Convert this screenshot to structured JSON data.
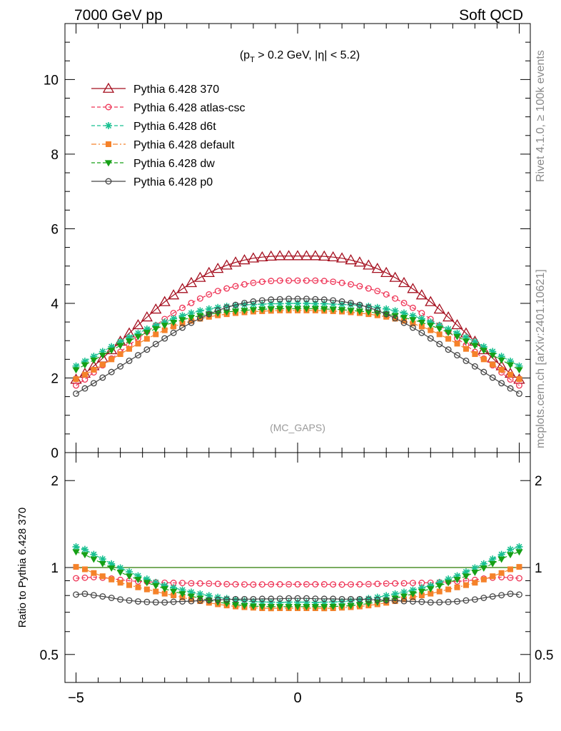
{
  "header": {
    "left_title": "7000 GeV pp",
    "right_title": "Soft QCD"
  },
  "side_text": {
    "rivet": "Rivet 4.1.0, ≥ 100k events",
    "mcplots": "mcplots.cern.ch [arXiv:2401.10621]"
  },
  "colors": {
    "p370": "#a50f1f",
    "atlas": "#ee3355",
    "d6t": "#18c090",
    "default": "#f5822a",
    "dw": "#16a016",
    "p0": "#444444",
    "ref_line": "#2a7a00"
  },
  "chart_data": [
    {
      "type": "line",
      "panel": "main",
      "title": "(p_T > 0.2 GeV, |η| < 5.2)",
      "title_parts": {
        "a": "(p",
        "sub": "T",
        "b": " > 0.2 GeV, |η| < 5.2)"
      },
      "annotation": "(MC_GAPS)",
      "xlim": [
        -5.25,
        5.25
      ],
      "ylim": [
        0,
        11.5
      ],
      "xlabel": "",
      "ylabel": "",
      "ytick_labels": [
        "0",
        "2",
        "4",
        "6",
        "8",
        "10"
      ],
      "legend_position": "top-left",
      "x": [
        -5.0,
        -4.8,
        -4.6,
        -4.4,
        -4.2,
        -4.0,
        -3.8,
        -3.6,
        -3.4,
        -3.2,
        -3.0,
        -2.8,
        -2.6,
        -2.4,
        -2.2,
        -2.0,
        -1.8,
        -1.6,
        -1.4,
        -1.2,
        -1.0,
        -0.8,
        -0.6,
        -0.4,
        -0.2,
        0.0,
        0.2,
        0.4,
        0.6,
        0.8,
        1.0,
        1.2,
        1.4,
        1.6,
        1.8,
        2.0,
        2.2,
        2.4,
        2.6,
        2.8,
        3.0,
        3.2,
        3.4,
        3.6,
        3.8,
        4.0,
        4.2,
        4.4,
        4.6,
        4.8,
        5.0
      ],
      "series": [
        {
          "key": "p370",
          "name": "Pythia 6.428 370",
          "marker": "triangle-open",
          "line": "solid",
          "values": [
            1.96,
            2.12,
            2.32,
            2.53,
            2.75,
            2.98,
            3.2,
            3.42,
            3.63,
            3.84,
            4.04,
            4.22,
            4.39,
            4.55,
            4.69,
            4.82,
            4.93,
            5.02,
            5.1,
            5.16,
            5.21,
            5.24,
            5.26,
            5.27,
            5.27,
            5.27,
            5.27,
            5.27,
            5.26,
            5.24,
            5.21,
            5.16,
            5.1,
            5.02,
            4.93,
            4.82,
            4.69,
            4.55,
            4.39,
            4.22,
            4.04,
            3.84,
            3.63,
            3.42,
            3.2,
            2.98,
            2.75,
            2.53,
            2.32,
            2.12,
            1.96
          ]
        },
        {
          "key": "atlas",
          "name": "Pythia 6.428 atlas-csc",
          "marker": "circle-open",
          "line": "dashed",
          "values": [
            1.8,
            1.96,
            2.15,
            2.34,
            2.52,
            2.7,
            2.88,
            3.06,
            3.24,
            3.41,
            3.58,
            3.74,
            3.88,
            4.01,
            4.13,
            4.24,
            4.33,
            4.4,
            4.46,
            4.51,
            4.55,
            4.58,
            4.6,
            4.61,
            4.61,
            4.61,
            4.61,
            4.61,
            4.6,
            4.58,
            4.55,
            4.51,
            4.46,
            4.4,
            4.33,
            4.24,
            4.13,
            4.01,
            3.88,
            3.74,
            3.58,
            3.41,
            3.24,
            3.06,
            2.88,
            2.7,
            2.52,
            2.34,
            2.15,
            1.96,
            1.8
          ]
        },
        {
          "key": "d6t",
          "name": "Pythia 6.428 d6t",
          "marker": "star",
          "line": "dashed",
          "values": [
            2.32,
            2.45,
            2.58,
            2.71,
            2.84,
            2.97,
            3.09,
            3.2,
            3.31,
            3.41,
            3.5,
            3.59,
            3.67,
            3.74,
            3.8,
            3.85,
            3.89,
            3.92,
            3.94,
            3.96,
            3.97,
            3.98,
            3.99,
            3.99,
            4.0,
            4.0,
            4.0,
            3.99,
            3.99,
            3.98,
            3.97,
            3.96,
            3.94,
            3.92,
            3.89,
            3.85,
            3.8,
            3.74,
            3.67,
            3.59,
            3.5,
            3.41,
            3.31,
            3.2,
            3.09,
            2.97,
            2.84,
            2.71,
            2.58,
            2.45,
            2.32
          ]
        },
        {
          "key": "default",
          "name": "Pythia 6.428 default",
          "marker": "square",
          "line": "dashdot",
          "values": [
            1.97,
            2.09,
            2.22,
            2.36,
            2.5,
            2.64,
            2.78,
            2.92,
            3.05,
            3.17,
            3.28,
            3.38,
            3.46,
            3.53,
            3.59,
            3.64,
            3.68,
            3.71,
            3.74,
            3.76,
            3.78,
            3.79,
            3.8,
            3.81,
            3.81,
            3.81,
            3.81,
            3.81,
            3.8,
            3.79,
            3.78,
            3.76,
            3.74,
            3.71,
            3.68,
            3.64,
            3.59,
            3.53,
            3.46,
            3.38,
            3.28,
            3.17,
            3.05,
            2.92,
            2.78,
            2.64,
            2.5,
            2.36,
            2.22,
            2.09,
            1.97
          ]
        },
        {
          "key": "dw",
          "name": "Pythia 6.428 dw",
          "marker": "triangle-down",
          "line": "dashed",
          "values": [
            2.22,
            2.35,
            2.48,
            2.61,
            2.74,
            2.87,
            2.99,
            3.11,
            3.22,
            3.32,
            3.41,
            3.49,
            3.56,
            3.62,
            3.67,
            3.71,
            3.74,
            3.77,
            3.79,
            3.81,
            3.83,
            3.84,
            3.85,
            3.86,
            3.86,
            3.86,
            3.86,
            3.86,
            3.85,
            3.84,
            3.83,
            3.81,
            3.79,
            3.77,
            3.74,
            3.71,
            3.67,
            3.62,
            3.56,
            3.49,
            3.41,
            3.32,
            3.22,
            3.11,
            2.99,
            2.87,
            2.74,
            2.61,
            2.48,
            2.35,
            2.22
          ]
        },
        {
          "key": "p0",
          "name": "Pythia 6.428 p0",
          "marker": "circle-open",
          "line": "solid",
          "values": [
            1.58,
            1.72,
            1.86,
            2.01,
            2.16,
            2.31,
            2.46,
            2.61,
            2.76,
            2.91,
            3.06,
            3.21,
            3.35,
            3.48,
            3.6,
            3.71,
            3.81,
            3.89,
            3.96,
            4.01,
            4.05,
            4.08,
            4.1,
            4.11,
            4.12,
            4.12,
            4.12,
            4.11,
            4.1,
            4.08,
            4.05,
            4.01,
            3.96,
            3.89,
            3.81,
            3.71,
            3.6,
            3.48,
            3.35,
            3.21,
            3.06,
            2.91,
            2.76,
            2.61,
            2.46,
            2.31,
            2.16,
            2.01,
            1.86,
            1.72,
            1.58
          ]
        }
      ]
    },
    {
      "type": "line",
      "panel": "ratio",
      "ylabel": "Ratio to Pythia 6.428 370",
      "xlim": [
        -5.25,
        5.25
      ],
      "ylim": [
        0.4,
        2.5
      ],
      "yscale": "log",
      "ytick_labels": [
        "0.5",
        "1",
        "2"
      ],
      "xtick_labels": [
        "−5",
        "0",
        "5"
      ],
      "reference_value": 1.0,
      "series": [
        {
          "key": "atlas",
          "values": [
            0.918,
            0.922,
            0.926,
            0.922,
            0.916,
            0.906,
            0.9,
            0.895,
            0.893,
            0.888,
            0.886,
            0.885,
            0.884,
            0.882,
            0.881,
            0.88,
            0.878,
            0.876,
            0.875,
            0.874,
            0.873,
            0.874,
            0.875,
            0.875,
            0.875,
            0.875,
            0.875,
            0.875,
            0.875,
            0.874,
            0.873,
            0.874,
            0.875,
            0.876,
            0.878,
            0.88,
            0.881,
            0.882,
            0.884,
            0.885,
            0.886,
            0.888,
            0.893,
            0.895,
            0.9,
            0.906,
            0.916,
            0.922,
            0.926,
            0.922,
            0.918
          ]
        },
        {
          "key": "d6t",
          "values": [
            1.18,
            1.155,
            1.11,
            1.07,
            1.03,
            0.997,
            0.966,
            0.936,
            0.912,
            0.888,
            0.866,
            0.851,
            0.836,
            0.822,
            0.81,
            0.799,
            0.789,
            0.781,
            0.773,
            0.767,
            0.762,
            0.76,
            0.759,
            0.757,
            0.759,
            0.759,
            0.759,
            0.757,
            0.759,
            0.76,
            0.762,
            0.767,
            0.773,
            0.781,
            0.789,
            0.799,
            0.81,
            0.822,
            0.836,
            0.851,
            0.866,
            0.888,
            0.912,
            0.936,
            0.966,
            0.997,
            1.03,
            1.07,
            1.11,
            1.155,
            1.18
          ]
        },
        {
          "key": "default",
          "values": [
            1.005,
            0.986,
            0.957,
            0.933,
            0.909,
            0.886,
            0.869,
            0.854,
            0.84,
            0.826,
            0.812,
            0.801,
            0.788,
            0.776,
            0.765,
            0.755,
            0.746,
            0.739,
            0.733,
            0.729,
            0.726,
            0.723,
            0.722,
            0.723,
            0.723,
            0.723,
            0.723,
            0.723,
            0.722,
            0.723,
            0.726,
            0.729,
            0.733,
            0.739,
            0.746,
            0.755,
            0.765,
            0.776,
            0.788,
            0.801,
            0.812,
            0.826,
            0.84,
            0.854,
            0.869,
            0.886,
            0.909,
            0.933,
            0.957,
            0.986,
            1.005
          ]
        },
        {
          "key": "dw",
          "values": [
            1.133,
            1.108,
            1.069,
            1.032,
            0.996,
            0.963,
            0.934,
            0.909,
            0.887,
            0.865,
            0.844,
            0.827,
            0.811,
            0.796,
            0.783,
            0.77,
            0.759,
            0.751,
            0.743,
            0.738,
            0.735,
            0.733,
            0.732,
            0.732,
            0.732,
            0.732,
            0.732,
            0.732,
            0.732,
            0.733,
            0.735,
            0.738,
            0.743,
            0.751,
            0.759,
            0.77,
            0.783,
            0.796,
            0.811,
            0.827,
            0.844,
            0.865,
            0.887,
            0.909,
            0.934,
            0.963,
            0.996,
            1.032,
            1.069,
            1.108,
            1.133
          ]
        },
        {
          "key": "p0",
          "values": [
            0.806,
            0.811,
            0.802,
            0.794,
            0.785,
            0.775,
            0.769,
            0.763,
            0.76,
            0.758,
            0.757,
            0.761,
            0.763,
            0.765,
            0.768,
            0.77,
            0.773,
            0.775,
            0.777,
            0.777,
            0.777,
            0.779,
            0.779,
            0.78,
            0.782,
            0.782,
            0.782,
            0.78,
            0.779,
            0.779,
            0.777,
            0.777,
            0.777,
            0.775,
            0.773,
            0.77,
            0.768,
            0.765,
            0.763,
            0.761,
            0.757,
            0.758,
            0.76,
            0.763,
            0.769,
            0.775,
            0.785,
            0.794,
            0.802,
            0.811,
            0.806
          ]
        }
      ]
    }
  ]
}
